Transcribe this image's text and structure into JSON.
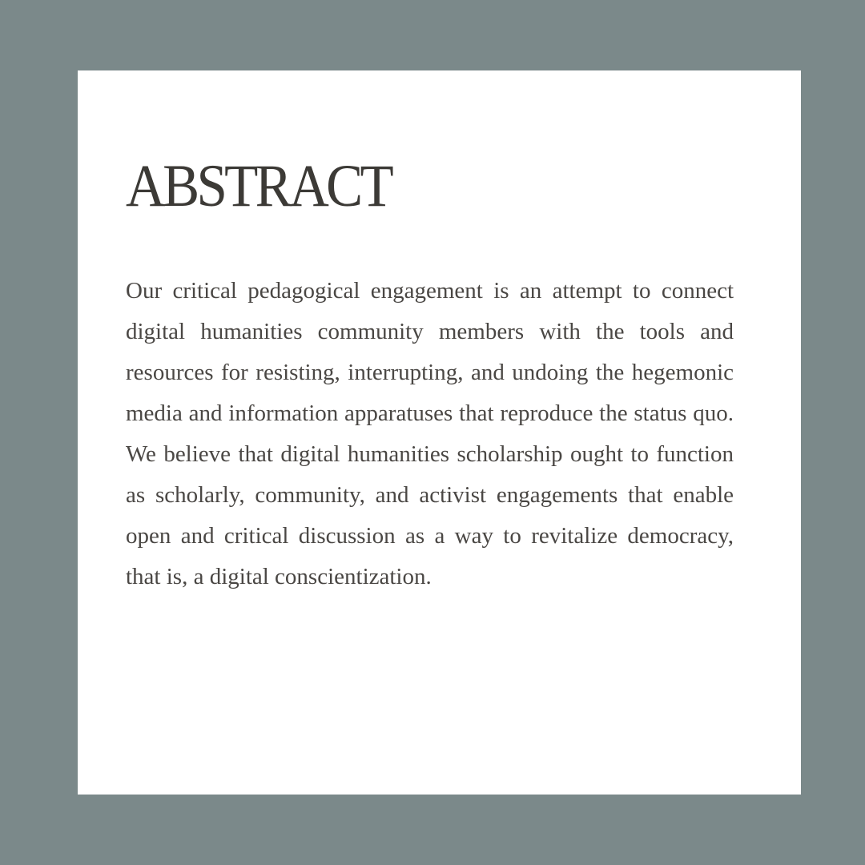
{
  "slide": {
    "title": "ABSTRACT",
    "body": "Our critical pedagogical engagement is an attempt to connect digital humanities community members with the tools and resources for resisting, interrupting, and undoing the hegemonic media and information apparatuses that reproduce the status quo. We believe that digital humanities scholarship ought to function as scholarly, community, and activist engagements that enable open and critical discussion as a way to revitalize democracy, that is, a digital conscientization."
  },
  "colors": {
    "background": "#7b898a",
    "card": "#ffffff",
    "title_text": "#3c3a36",
    "body_text": "#4a4744"
  }
}
